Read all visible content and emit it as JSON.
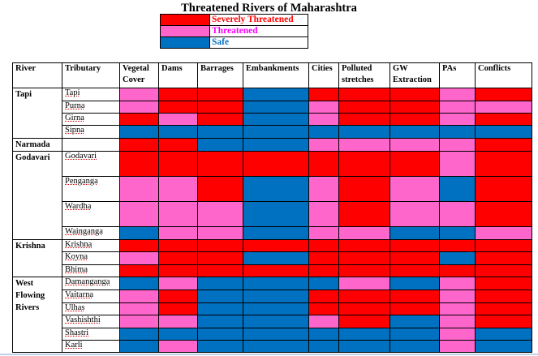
{
  "title": "Threatened Rivers of Maharashtra",
  "colors": {
    "S": "#ff0000",
    "T": "#ff66cc",
    "F": "#0070c0"
  },
  "legend": [
    {
      "key": "S",
      "label": "Severely Threatened",
      "text_color": "#ff0000"
    },
    {
      "key": "T",
      "label": "Threatened",
      "text_color": "#ff00ff"
    },
    {
      "key": "F",
      "label": "Safe",
      "text_color": "#0070c0"
    }
  ],
  "headers": [
    "River",
    "Tributary",
    "Vegetal Cover",
    "Dams",
    "Barrages",
    "Embankments",
    "Cities",
    "Polluted stretches",
    "GW Extraction",
    "PAs",
    "Conflicts"
  ],
  "groups": [
    {
      "river": "Tapi",
      "rows": [
        {
          "trib": "Tapi",
          "cells": [
            "T",
            "S",
            "S",
            "F",
            "S",
            "S",
            "S",
            "T",
            "S"
          ]
        },
        {
          "trib": "Purna",
          "cells": [
            "T",
            "S",
            "S",
            "F",
            "T",
            "S",
            "S",
            "T",
            "T"
          ]
        },
        {
          "trib": "Girna",
          "cells": [
            "S",
            "T",
            "S",
            "F",
            "T",
            "S",
            "S",
            "T",
            "S"
          ]
        },
        {
          "trib": "Sipna",
          "cells": [
            "F",
            "F",
            "F",
            "F",
            "F",
            "F",
            "F",
            "F",
            "F"
          ]
        }
      ]
    },
    {
      "river": "Narmada",
      "rows": [
        {
          "trib": "",
          "cells": [
            "S",
            "S",
            "F",
            "F",
            "T",
            "T",
            "T",
            "T",
            "S"
          ]
        }
      ]
    },
    {
      "river": "Godavari",
      "rows": [
        {
          "trib": "Godavari",
          "cells": [
            "S",
            "S",
            "S",
            "S",
            "S",
            "S",
            "S",
            "T",
            "S"
          ]
        },
        {
          "trib": "Penganga",
          "cells": [
            "T",
            "T",
            "S",
            "F",
            "T",
            "S",
            "T",
            "F",
            "S"
          ]
        },
        {
          "trib": "Wardha",
          "cells": [
            "T",
            "T",
            "T",
            "F",
            "T",
            "S",
            "T",
            "T",
            "S"
          ]
        },
        {
          "trib": "Wainganga",
          "cells": [
            "F",
            "T",
            "T",
            "F",
            "T",
            "T",
            "F",
            "F",
            "T"
          ]
        }
      ]
    },
    {
      "river": "Krishna",
      "rows": [
        {
          "trib": "Krishna",
          "cells": [
            "S",
            "S",
            "S",
            "S",
            "S",
            "S",
            "S",
            "S",
            "S"
          ]
        },
        {
          "trib": "Koyna",
          "cells": [
            "T",
            "S",
            "S",
            "F",
            "S",
            "S",
            "S",
            "F",
            "S"
          ]
        },
        {
          "trib": "Bhima",
          "cells": [
            "S",
            "S",
            "S",
            "S",
            "S",
            "S",
            "S",
            "S",
            "S"
          ]
        }
      ]
    },
    {
      "river": "West Flowing Rivers",
      "rows": [
        {
          "trib": "Damanganga",
          "cells": [
            "F",
            "T",
            "F",
            "F",
            "F",
            "T",
            "F",
            "T",
            "S"
          ]
        },
        {
          "trib": "Vaitarna",
          "cells": [
            "T",
            "S",
            "F",
            "F",
            "S",
            "S",
            "S",
            "T",
            "S"
          ]
        },
        {
          "trib": "Ulhas",
          "cells": [
            "T",
            "S",
            "F",
            "F",
            "S",
            "S",
            "S",
            "T",
            "S"
          ]
        },
        {
          "trib": "Vashishthi",
          "cells": [
            "T",
            "T",
            "F",
            "F",
            "T",
            "S",
            "F",
            "T",
            "S"
          ]
        },
        {
          "trib": "Shastri",
          "cells": [
            "F",
            "F",
            "F",
            "F",
            "F",
            "F",
            "F",
            "T",
            "F"
          ]
        },
        {
          "trib": "Karli",
          "cells": [
            "F",
            "T",
            "F",
            "F",
            "F",
            "F",
            "F",
            "T",
            "F"
          ]
        }
      ]
    }
  ]
}
